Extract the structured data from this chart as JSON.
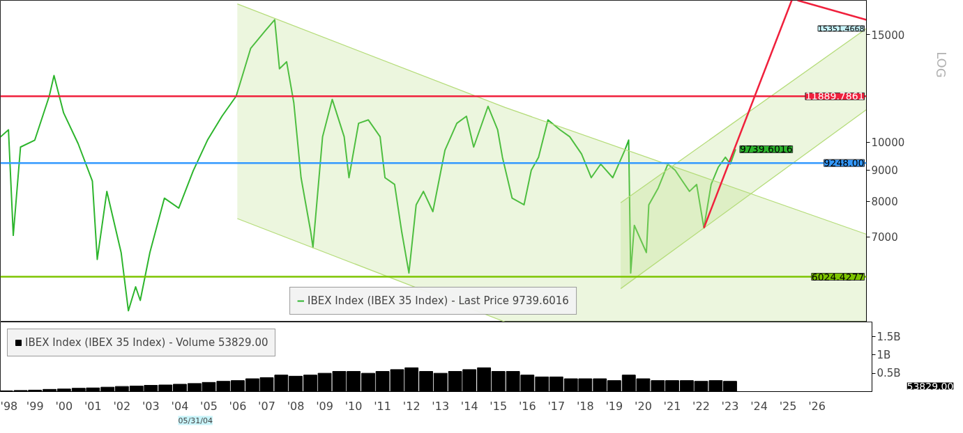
{
  "chart_data": [
    {
      "type": "line",
      "log": "y",
      "xlim": [
        "1998-04-20",
        "2028-05-25"
      ],
      "ylim": [
        5080,
        17070
      ],
      "yticks": [
        7000,
        8000,
        9000,
        10000,
        15000
      ],
      "tick_labels": "y",
      "grid": false,
      "legend": "bottom",
      "line_style": "solid",
      "series": [
        {
          "name": "IBEX Index (IBEX 35 Index) - Last Price 9739.6016",
          "color": "#2db52d",
          "x": [
            "1998-04-20",
            "1998-08",
            "1998-10",
            "1999-01",
            "1999-07",
            "2000-01",
            "2000-03",
            "2000-07",
            "2001-01",
            "2001-07",
            "2001-09",
            "2002-01",
            "2002-07",
            "2002-10",
            "2003-01",
            "2003-03",
            "2003-07",
            "2004-01",
            "2004-07",
            "2005-01",
            "2005-07",
            "2006-01",
            "2006-07",
            "2007-01",
            "2007-07",
            "2007-11",
            "2008-01",
            "2008-04",
            "2008-07",
            "2008-10",
            "2009-02",
            "2009-03",
            "2009-07",
            "2009-11",
            "2010-04",
            "2010-06",
            "2010-10",
            "2011-02",
            "2011-07",
            "2011-09",
            "2012-01",
            "2012-04",
            "2012-07",
            "2012-10",
            "2013-01",
            "2013-05",
            "2013-10",
            "2014-03",
            "2014-07",
            "2014-10",
            "2015-04",
            "2015-08",
            "2015-10",
            "2016-02",
            "2016-07",
            "2016-10",
            "2017-01",
            "2017-05",
            "2017-10",
            "2018-02",
            "2018-07",
            "2018-11",
            "2019-03",
            "2019-08",
            "2020-01",
            "2020-02-19",
            "2020-03-16",
            "2020-05",
            "2020-10",
            "2020-11",
            "2021-03",
            "2021-07",
            "2021-10",
            "2022-01",
            "2022-04",
            "2022-07",
            "2022-10",
            "2023-01",
            "2023-04",
            "2023-07",
            "2023-09",
            "2023-11-08"
          ],
          "values": [
            10200,
            10480,
            7040,
            9820,
            10080,
            11900,
            12860,
            11170,
            9950,
            8640,
            6430,
            8310,
            6600,
            5300,
            5800,
            5510,
            6600,
            8100,
            7800,
            8980,
            10080,
            11030,
            11900,
            14250,
            15200,
            15870,
            13190,
            13540,
            11600,
            8750,
            7130,
            6730,
            10210,
            11750,
            10210,
            8750,
            10740,
            10880,
            10210,
            8750,
            8530,
            7130,
            6110,
            7900,
            8310,
            7700,
            9700,
            10740,
            11030,
            9820,
            11450,
            10480,
            9450,
            8100,
            7900,
            9000,
            9450,
            10880,
            10480,
            10210,
            9570,
            8750,
            9210,
            8750,
            9700,
            10080,
            6110,
            7310,
            6600,
            7900,
            8420,
            9210,
            9000,
            8640,
            8310,
            8530,
            7240,
            8530,
            9100,
            9450,
            9210,
            9739.6016
          ],
          "value_labels": [
            null,
            null,
            null,
            null,
            null,
            null,
            null,
            null,
            null,
            null,
            null,
            null,
            null,
            null,
            null,
            null,
            null,
            null,
            null,
            null,
            null,
            null,
            null,
            null,
            null,
            null,
            null,
            null,
            null,
            null,
            null,
            null,
            null,
            null,
            null,
            null,
            null,
            null,
            null,
            null,
            null,
            null,
            null,
            null,
            null,
            null,
            null,
            null,
            null,
            null,
            null,
            null,
            null,
            null,
            null,
            null,
            null,
            null,
            null,
            null,
            null,
            null,
            null,
            null,
            null,
            null,
            null,
            null,
            null,
            null,
            null,
            null,
            null,
            null,
            null,
            null,
            null,
            null,
            null,
            null,
            null,
            "9739.6016"
          ]
        },
        {
          "type": "area",
          "color": "#b5dc7a",
          "x": [
            "2006-07-15",
            "2015-11-05",
            "2028-05-25"
          ],
          "values": [
            16840,
            11400,
            7070
          ]
        },
        {
          "type": "line",
          "color": "#b5dc7a",
          "x": [
            "2006-07-15",
            "2015-11-05"
          ],
          "values": [
            7500,
            5080
          ]
        },
        {
          "type": "area",
          "color": "#b5dc7a",
          "x": [
            "2019-11-10",
            "2028-05-25"
          ],
          "values": [
            7960,
            15351.4668
          ],
          "value_labels": [
            null,
            "15351.4668"
          ]
        },
        {
          "type": "line",
          "color": "#b5dc7a",
          "x": [
            "2019-11-10",
            "2028-05-25"
          ],
          "values": [
            5760,
            11310
          ]
        },
        {
          "type": "line",
          "color": "#f0203c",
          "x": [
            "2022-10-01",
            "2025-10-20"
          ],
          "values": [
            7240,
            17070
          ]
        },
        {
          "type": "line",
          "color": "#f0203c",
          "x": [
            "2026-01-01",
            "2028-05-25"
          ],
          "values": [
            17070,
            15860
          ]
        }
      ],
      "ref_lines": [
        {
          "axis": "y",
          "value": 11889.7861,
          "label": "11889.7861",
          "color": "#f0203c"
        },
        {
          "axis": "y",
          "value": 9248.0,
          "label": "9248.00",
          "color": "#3399ff"
        },
        {
          "axis": "y",
          "value": 6024.4277,
          "label": "6024.4277",
          "color": "#7cc400"
        }
      ],
      "annotations": [
        "LOG"
      ]
    },
    {
      "type": "bar",
      "xlim": [
        "1998-04-20",
        "2028-05-25"
      ],
      "ylim": [
        0,
        1900000000
      ],
      "yticks": [
        {
          "value": 500000000,
          "label": "0.5B"
        },
        {
          "value": 1000000000,
          "label": "1B"
        },
        {
          "value": 1500000000,
          "label": "1.5B"
        }
      ],
      "xticks": [
        {
          "value": "1998-07-01",
          "label": "'98"
        },
        {
          "value": "1999-07-01",
          "label": "'99"
        },
        {
          "value": "2000-07-01",
          "label": "'00"
        },
        {
          "value": "2001-07-01",
          "label": "'01"
        },
        {
          "value": "2002-07-01",
          "label": "'02"
        },
        {
          "value": "2003-07-01",
          "label": "'03"
        },
        {
          "value": "2004-07-01",
          "label": "'04"
        },
        {
          "value": "2005-07-01",
          "label": "'05"
        },
        {
          "value": "2006-07-01",
          "label": "'06"
        },
        {
          "value": "2007-07-01",
          "label": "'07"
        },
        {
          "value": "2008-07-01",
          "label": "'08"
        },
        {
          "value": "2009-07-01",
          "label": "'09"
        },
        {
          "value": "2010-07-01",
          "label": "'10"
        },
        {
          "value": "2011-07-01",
          "label": "'11"
        },
        {
          "value": "2012-07-01",
          "label": "'12"
        },
        {
          "value": "2013-07-01",
          "label": "'13"
        },
        {
          "value": "2014-07-01",
          "label": "'14"
        },
        {
          "value": "2015-07-01",
          "label": "'15"
        },
        {
          "value": "2016-07-01",
          "label": "'16"
        },
        {
          "value": "2017-07-01",
          "label": "'17"
        },
        {
          "value": "2018-07-01",
          "label": "'18"
        },
        {
          "value": "2019-07-01",
          "label": "'19"
        },
        {
          "value": "2020-07-01",
          "label": "'20"
        },
        {
          "value": "2021-07-01",
          "label": "'21"
        },
        {
          "value": "2022-07-01",
          "label": "'22"
        },
        {
          "value": "2023-07-01",
          "label": "'23"
        },
        {
          "value": "2024-07-01",
          "label": "'24"
        },
        {
          "value": "2025-07-01",
          "label": "'25"
        },
        {
          "value": "2026-07-01",
          "label": "'26"
        }
      ],
      "grid": false,
      "legend": "top left",
      "series": [
        {
          "name": "IBEX Index (IBEX 35 Index) - Volume 53829.00",
          "color": "#000000",
          "x": [
            "1998-07",
            "1999-01",
            "1999-07",
            "2000-01",
            "2000-07",
            "2001-01",
            "2001-07",
            "2002-01",
            "2002-07",
            "2003-01",
            "2003-07",
            "2004-01",
            "2004-07",
            "2005-01",
            "2005-07",
            "2006-01",
            "2006-07",
            "2007-01",
            "2007-07",
            "2008-01",
            "2008-07",
            "2009-01",
            "2009-07",
            "2010-01",
            "2010-07",
            "2011-01",
            "2011-07",
            "2012-01",
            "2012-07",
            "2013-01",
            "2013-07",
            "2014-01",
            "2014-07",
            "2015-01",
            "2015-07",
            "2016-01",
            "2016-07",
            "2017-01",
            "2017-07",
            "2018-01",
            "2018-07",
            "2019-01",
            "2019-07",
            "2020-01",
            "2020-07",
            "2021-01",
            "2021-07",
            "2022-01",
            "2022-07",
            "2023-01",
            "2023-07"
          ],
          "values": [
            20000000,
            30000000,
            40000000,
            60000000,
            70000000,
            90000000,
            100000000,
            120000000,
            140000000,
            150000000,
            170000000,
            180000000,
            200000000,
            220000000,
            250000000,
            280000000,
            300000000,
            350000000,
            380000000,
            450000000,
            420000000,
            450000000,
            500000000,
            550000000,
            550000000,
            500000000,
            550000000,
            600000000,
            650000000,
            550000000,
            500000000,
            550000000,
            600000000,
            650000000,
            550000000,
            550000000,
            450000000,
            400000000,
            400000000,
            350000000,
            350000000,
            350000000,
            300000000,
            450000000,
            350000000,
            300000000,
            300000000,
            300000000,
            280000000,
            300000000,
            280000000
          ]
        }
      ],
      "annotations": [
        "53829.00",
        "05/31/04"
      ]
    }
  ]
}
